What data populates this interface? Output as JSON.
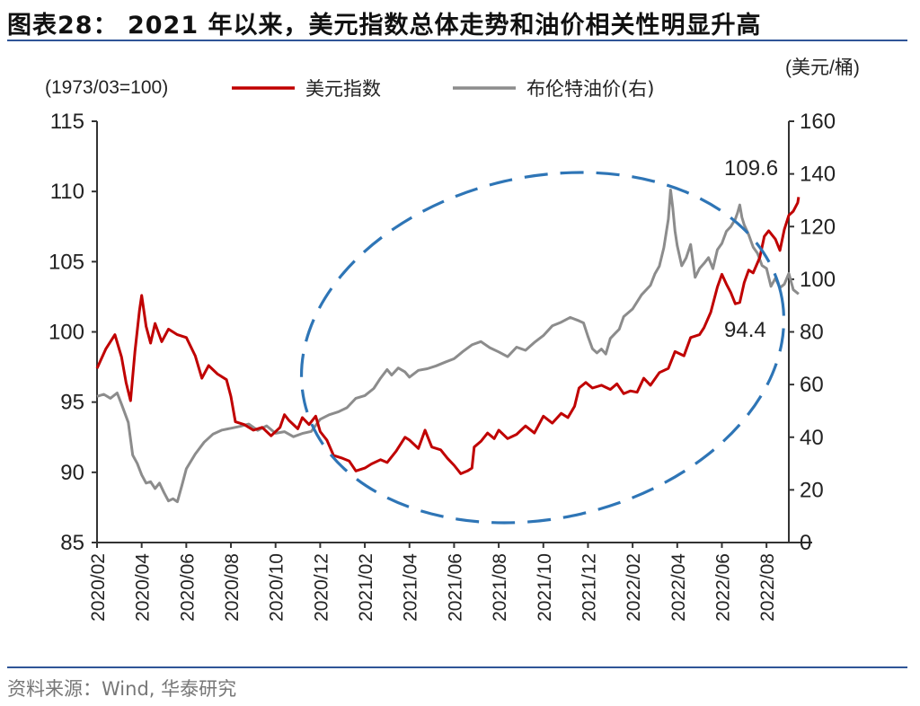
{
  "header": {
    "title": "图表28：  2021 年以来，美元指数总体走势和油价相关性明显升高"
  },
  "footer": {
    "source": "资料来源：Wind, 华泰研究"
  },
  "colors": {
    "usd_index": "#c00000",
    "brent": "#8c8c8c",
    "ellipse": "#2e75b6",
    "rule": "#2f5597"
  },
  "chart_data": {
    "type": "line",
    "left_axis_note": "(1973/03=100)",
    "right_axis_unit": "(美元/桶)",
    "xlabels": [
      "2020/02",
      "2020/04",
      "2020/06",
      "2020/08",
      "2020/10",
      "2020/12",
      "2021/02",
      "2021/04",
      "2021/06",
      "2021/08",
      "2021/10",
      "2021/12",
      "2022/02",
      "2022/04",
      "2022/06",
      "2022/08"
    ],
    "xlim": [
      0,
      15.5
    ],
    "y_left": {
      "ticks": [
        "85",
        "90",
        "95",
        "100",
        "105",
        "110",
        "115"
      ],
      "ylim": [
        85,
        115
      ]
    },
    "y_right": {
      "ticks": [
        "0",
        "20",
        "40",
        "60",
        "80",
        "100",
        "120",
        "140",
        "160"
      ],
      "ylim": [
        0,
        160
      ]
    },
    "legend": [
      "美元指数",
      "布伦特油价(右)"
    ],
    "annotations": [
      "109.6",
      "94.4"
    ],
    "series": [
      {
        "name": "美元指数",
        "axis": "left",
        "points": [
          [
            0,
            97.4
          ],
          [
            0.2,
            98.8
          ],
          [
            0.4,
            99.8
          ],
          [
            0.55,
            98.2
          ],
          [
            0.65,
            96.4
          ],
          [
            0.75,
            95.1
          ],
          [
            0.85,
            98.6
          ],
          [
            0.95,
            101.5
          ],
          [
            1.0,
            102.6
          ],
          [
            1.1,
            100.4
          ],
          [
            1.2,
            99.2
          ],
          [
            1.3,
            100.6
          ],
          [
            1.45,
            99.3
          ],
          [
            1.6,
            100.2
          ],
          [
            1.8,
            99.8
          ],
          [
            2.0,
            99.6
          ],
          [
            2.2,
            98.3
          ],
          [
            2.35,
            96.7
          ],
          [
            2.5,
            97.6
          ],
          [
            2.7,
            97.0
          ],
          [
            2.9,
            96.6
          ],
          [
            3.0,
            95.4
          ],
          [
            3.1,
            93.6
          ],
          [
            3.3,
            93.4
          ],
          [
            3.5,
            93.0
          ],
          [
            3.7,
            93.2
          ],
          [
            3.9,
            92.6
          ],
          [
            4.1,
            93.2
          ],
          [
            4.2,
            94.1
          ],
          [
            4.3,
            93.7
          ],
          [
            4.5,
            93.1
          ],
          [
            4.6,
            93.9
          ],
          [
            4.75,
            93.4
          ],
          [
            4.9,
            94.0
          ],
          [
            5.0,
            92.9
          ],
          [
            5.15,
            92.3
          ],
          [
            5.3,
            91.2
          ],
          [
            5.5,
            91.0
          ],
          [
            5.65,
            90.8
          ],
          [
            5.8,
            90.1
          ],
          [
            6.0,
            90.3
          ],
          [
            6.15,
            90.6
          ],
          [
            6.35,
            90.9
          ],
          [
            6.5,
            90.7
          ],
          [
            6.7,
            91.5
          ],
          [
            6.9,
            92.5
          ],
          [
            7.0,
            92.3
          ],
          [
            7.2,
            91.7
          ],
          [
            7.35,
            93.0
          ],
          [
            7.5,
            91.8
          ],
          [
            7.7,
            91.6
          ],
          [
            7.85,
            91.0
          ],
          [
            8.0,
            90.5
          ],
          [
            8.15,
            89.9
          ],
          [
            8.3,
            90.1
          ],
          [
            8.4,
            90.3
          ],
          [
            8.45,
            91.8
          ],
          [
            8.6,
            92.2
          ],
          [
            8.75,
            92.8
          ],
          [
            8.9,
            92.4
          ],
          [
            9.0,
            93.0
          ],
          [
            9.2,
            92.4
          ],
          [
            9.4,
            92.7
          ],
          [
            9.6,
            93.3
          ],
          [
            9.8,
            92.8
          ],
          [
            10.0,
            94.0
          ],
          [
            10.2,
            93.5
          ],
          [
            10.4,
            94.2
          ],
          [
            10.55,
            93.9
          ],
          [
            10.7,
            94.7
          ],
          [
            10.8,
            96.0
          ],
          [
            10.95,
            96.4
          ],
          [
            11.1,
            96.0
          ],
          [
            11.3,
            96.2
          ],
          [
            11.5,
            95.9
          ],
          [
            11.65,
            96.3
          ],
          [
            11.8,
            95.6
          ],
          [
            11.95,
            95.8
          ],
          [
            12.1,
            95.7
          ],
          [
            12.25,
            96.7
          ],
          [
            12.4,
            96.2
          ],
          [
            12.6,
            97.1
          ],
          [
            12.8,
            97.4
          ],
          [
            12.95,
            98.6
          ],
          [
            13.15,
            98.3
          ],
          [
            13.3,
            99.6
          ],
          [
            13.5,
            99.8
          ],
          [
            13.6,
            100.3
          ],
          [
            13.75,
            101.4
          ],
          [
            13.9,
            103.2
          ],
          [
            14.0,
            104.1
          ],
          [
            14.1,
            103.4
          ],
          [
            14.2,
            102.8
          ],
          [
            14.3,
            102.0
          ],
          [
            14.4,
            102.1
          ],
          [
            14.5,
            103.5
          ],
          [
            14.6,
            104.4
          ],
          [
            14.7,
            104.2
          ],
          [
            14.85,
            105.3
          ],
          [
            14.95,
            106.8
          ],
          [
            15.05,
            107.2
          ],
          [
            15.2,
            106.6
          ],
          [
            15.3,
            105.8
          ],
          [
            15.4,
            107.3
          ],
          [
            15.5,
            108.3
          ],
          [
            15.6,
            108.6
          ],
          [
            15.7,
            109.2
          ],
          [
            15.72,
            109.6
          ]
        ]
      },
      {
        "name": "布伦特油价(右)",
        "axis": "right",
        "points": [
          [
            0,
            55.5
          ],
          [
            0.15,
            56.3
          ],
          [
            0.3,
            54.8
          ],
          [
            0.45,
            56.8
          ],
          [
            0.55,
            52.5
          ],
          [
            0.7,
            45.6
          ],
          [
            0.8,
            33.2
          ],
          [
            0.9,
            30.1
          ],
          [
            1.0,
            25.7
          ],
          [
            1.1,
            22.6
          ],
          [
            1.2,
            23.1
          ],
          [
            1.3,
            20.5
          ],
          [
            1.4,
            22.6
          ],
          [
            1.5,
            19.0
          ],
          [
            1.6,
            15.8
          ],
          [
            1.7,
            16.6
          ],
          [
            1.8,
            15.5
          ],
          [
            1.9,
            21.6
          ],
          [
            2.0,
            28.0
          ],
          [
            2.2,
            33.6
          ],
          [
            2.4,
            38.1
          ],
          [
            2.6,
            41.2
          ],
          [
            2.8,
            42.7
          ],
          [
            3.0,
            43.4
          ],
          [
            3.2,
            44.1
          ],
          [
            3.4,
            45.0
          ],
          [
            3.6,
            42.6
          ],
          [
            3.8,
            44.3
          ],
          [
            4.0,
            41.5
          ],
          [
            4.2,
            42.1
          ],
          [
            4.4,
            40.2
          ],
          [
            4.6,
            41.4
          ],
          [
            4.8,
            42.2
          ],
          [
            5.0,
            46.8
          ],
          [
            5.2,
            48.5
          ],
          [
            5.4,
            49.6
          ],
          [
            5.6,
            51.2
          ],
          [
            5.8,
            54.8
          ],
          [
            6.0,
            55.8
          ],
          [
            6.2,
            58.5
          ],
          [
            6.35,
            62.4
          ],
          [
            6.5,
            65.7
          ],
          [
            6.6,
            63.6
          ],
          [
            6.75,
            66.3
          ],
          [
            6.9,
            64.8
          ],
          [
            7.0,
            62.8
          ],
          [
            7.2,
            65.4
          ],
          [
            7.4,
            66.0
          ],
          [
            7.6,
            67.1
          ],
          [
            7.8,
            68.5
          ],
          [
            8.0,
            69.8
          ],
          [
            8.2,
            72.6
          ],
          [
            8.4,
            75.1
          ],
          [
            8.6,
            76.3
          ],
          [
            8.8,
            74.0
          ],
          [
            9.0,
            72.4
          ],
          [
            9.2,
            70.6
          ],
          [
            9.4,
            74.2
          ],
          [
            9.6,
            73.0
          ],
          [
            9.8,
            76.0
          ],
          [
            10.0,
            78.6
          ],
          [
            10.2,
            82.3
          ],
          [
            10.4,
            83.7
          ],
          [
            10.6,
            85.5
          ],
          [
            10.8,
            84.2
          ],
          [
            10.9,
            83.4
          ],
          [
            11.0,
            78.2
          ],
          [
            11.1,
            73.6
          ],
          [
            11.2,
            72.0
          ],
          [
            11.3,
            73.5
          ],
          [
            11.4,
            71.6
          ],
          [
            11.5,
            77.5
          ],
          [
            11.6,
            79.3
          ],
          [
            11.7,
            81.0
          ],
          [
            11.8,
            85.8
          ],
          [
            12.0,
            88.7
          ],
          [
            12.2,
            94.1
          ],
          [
            12.4,
            97.7
          ],
          [
            12.5,
            102.1
          ],
          [
            12.6,
            105.0
          ],
          [
            12.7,
            112.0
          ],
          [
            12.8,
            122.8
          ],
          [
            12.85,
            133.9
          ],
          [
            12.9,
            127.2
          ],
          [
            12.95,
            118.3
          ],
          [
            13.0,
            112.7
          ],
          [
            13.1,
            105.1
          ],
          [
            13.2,
            108.1
          ],
          [
            13.3,
            113.2
          ],
          [
            13.4,
            100.7
          ],
          [
            13.5,
            104.1
          ],
          [
            13.6,
            106.0
          ],
          [
            13.7,
            108.2
          ],
          [
            13.8,
            104.0
          ],
          [
            13.9,
            111.2
          ],
          [
            14.0,
            113.6
          ],
          [
            14.1,
            118.2
          ],
          [
            14.2,
            120.0
          ],
          [
            14.3,
            122.8
          ],
          [
            14.35,
            125.2
          ],
          [
            14.4,
            128.2
          ],
          [
            14.45,
            123.5
          ],
          [
            14.5,
            120.7
          ],
          [
            14.6,
            116.9
          ],
          [
            14.7,
            112.2
          ],
          [
            14.8,
            109.8
          ],
          [
            14.9,
            105.2
          ],
          [
            15.0,
            104.1
          ],
          [
            15.1,
            97.3
          ],
          [
            15.2,
            100.4
          ],
          [
            15.3,
            96.8
          ],
          [
            15.4,
            98.1
          ],
          [
            15.5,
            102.2
          ],
          [
            15.6,
            96.0
          ],
          [
            15.72,
            94.4
          ]
        ]
      }
    ]
  }
}
